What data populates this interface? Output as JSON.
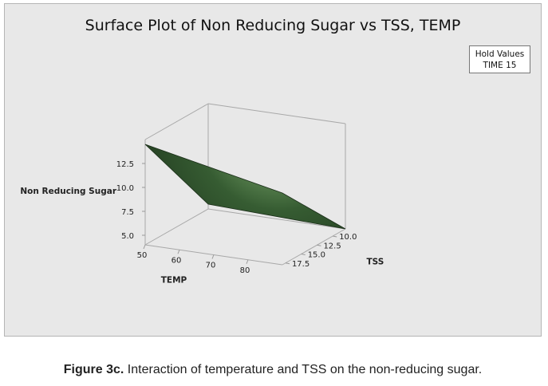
{
  "figure_caption": {
    "label": "Figure 3c.",
    "text": "Interaction of temperature and TSS on the non-reducing sugar."
  },
  "hold_values": {
    "title": "Hold Values",
    "items": [
      "TIME  15"
    ]
  },
  "chart_data": {
    "type": "surface",
    "title": "Surface Plot of Non Reducing Sugar vs TSS, TEMP",
    "xlabel": "TEMP",
    "ylabel": "TSS",
    "zlabel": "Non Reducing Sugar",
    "x_ticks": [
      "50",
      "60",
      "70",
      "80"
    ],
    "y_ticks": [
      "10.0",
      "12.5",
      "15.0",
      "17.5"
    ],
    "z_ticks": [
      "5.0",
      "7.5",
      "10.0",
      "12.5"
    ],
    "xlim": [
      50,
      90
    ],
    "ylim": [
      8,
      18
    ],
    "zlim": [
      4,
      15
    ],
    "surface_color": "#2f4f2a",
    "highlight_color": "#cfe8c2",
    "x": [
      50,
      90
    ],
    "y": [
      8,
      18
    ],
    "z": [
      [
        4.5,
        14.5
      ],
      [
        4.0,
        11.5
      ]
    ]
  }
}
